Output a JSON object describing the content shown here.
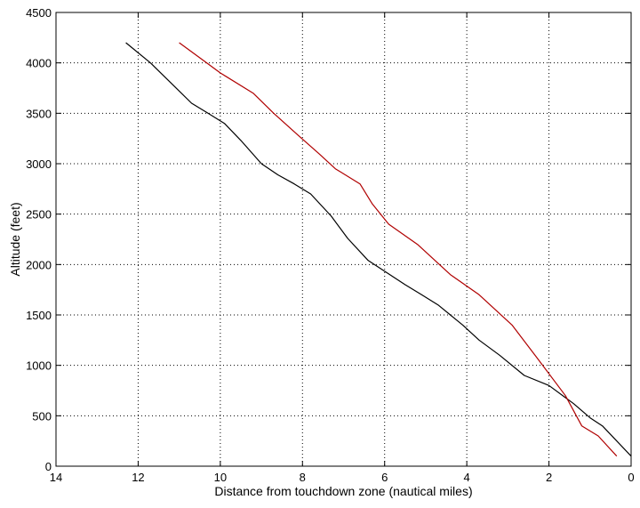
{
  "chart_data": {
    "type": "line",
    "title": "",
    "xlabel": "Distance from touchdown zone (nautical miles)",
    "ylabel": "Altitude (feet)",
    "xlim": [
      14,
      0
    ],
    "ylim": [
      0,
      4500
    ],
    "x_reversed": true,
    "grid": true,
    "grid_style": "dotted",
    "legend": "none",
    "xticks": [
      14,
      12,
      10,
      8,
      6,
      4,
      2,
      0
    ],
    "yticks": [
      0,
      500,
      1000,
      1500,
      2000,
      2500,
      3000,
      3500,
      4000,
      4500
    ],
    "series": [
      {
        "color": "#000000",
        "x": [
          12.3,
          11.7,
          11.2,
          10.7,
          10.3,
          9.9,
          9.5,
          9.0,
          8.6,
          8.2,
          7.8,
          7.3,
          6.9,
          6.4,
          5.5,
          5.1,
          4.7,
          4.1,
          3.7,
          3.2,
          2.6,
          2.0,
          1.4,
          1.0,
          0.7,
          0.0
        ],
        "y": [
          4200,
          4000,
          3800,
          3600,
          3500,
          3400,
          3230,
          3000,
          2890,
          2800,
          2700,
          2480,
          2260,
          2040,
          1800,
          1700,
          1600,
          1400,
          1250,
          1100,
          900,
          800,
          620,
          480,
          400,
          100
        ]
      },
      {
        "color": "#b00000",
        "x": [
          11.0,
          10.5,
          10.0,
          9.2,
          8.7,
          8.1,
          7.6,
          7.2,
          6.6,
          6.3,
          5.9,
          5.2,
          4.4,
          3.7,
          2.9,
          2.3,
          1.6,
          1.2,
          0.8,
          0.35
        ],
        "y": [
          4200,
          4050,
          3900,
          3700,
          3500,
          3280,
          3100,
          2950,
          2800,
          2600,
          2400,
          2200,
          1900,
          1700,
          1400,
          1080,
          700,
          400,
          300,
          100
        ]
      }
    ]
  }
}
